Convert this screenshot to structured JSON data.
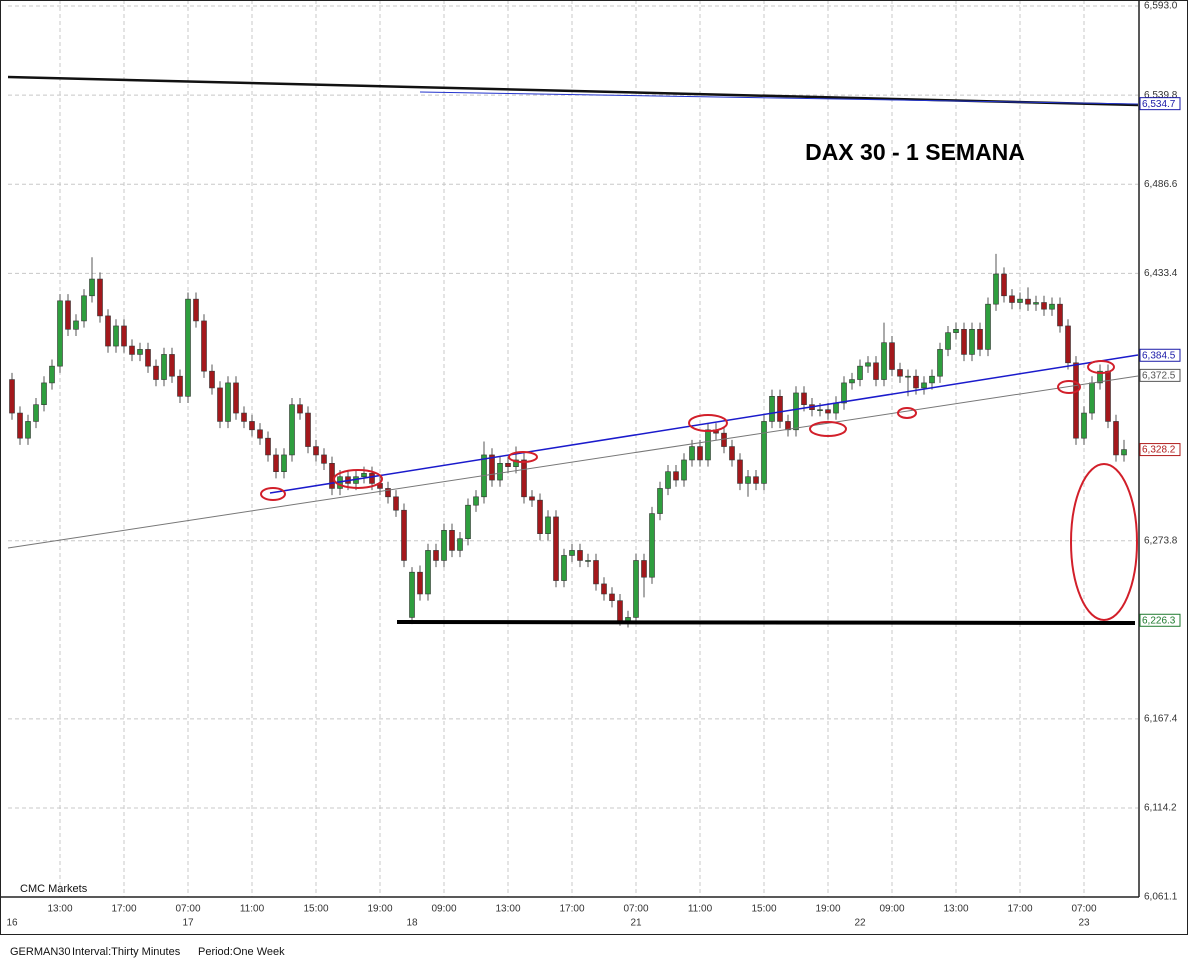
{
  "chart_data": {
    "type": "candlestick",
    "title": "DAX 30 - 1 SEMANA",
    "source": "CMC Markets",
    "symbol": "GERMAN30",
    "interval": "Interval:Thirty Minutes",
    "period": "Period:One Week",
    "up_color": "#2e9e3e",
    "down_color": "#a3181c",
    "grid": true,
    "ylim": [
      6061.1,
      6593.0
    ],
    "yticks": [
      {
        "value": 6061.1,
        "label": "6,061.1"
      },
      {
        "value": 6114.2,
        "label": "6,114.2"
      },
      {
        "value": 6167.4,
        "label": "6,167.4"
      },
      {
        "value": 6273.8,
        "label": "6,273.8"
      },
      {
        "value": 6433.4,
        "label": "6,433.4"
      },
      {
        "value": 6486.6,
        "label": "6,486.6"
      },
      {
        "value": 6539.8,
        "label": "6,539.8"
      },
      {
        "value": 6593.0,
        "label": "6,593.0"
      }
    ],
    "price_labels": [
      {
        "value": 6534.7,
        "label": "6,534.7",
        "color": "#1a1aa8"
      },
      {
        "value": 6384.5,
        "label": "6,384.5",
        "color": "#1a1aa8"
      },
      {
        "value": 6372.5,
        "label": "6,372.5",
        "color": "#555555"
      },
      {
        "value": 6328.2,
        "label": "6,328.2",
        "color": "#b01c1c"
      },
      {
        "value": 6226.3,
        "label": "6,226.3",
        "color": "#1e7a2e"
      }
    ],
    "xlim": [
      -0.5,
      140.75
    ],
    "xticks": [
      {
        "value": 6,
        "label": "13:00"
      },
      {
        "value": 14,
        "label": "17:00"
      },
      {
        "value": 22,
        "label": "07:00"
      },
      {
        "value": 30,
        "label": "11:00"
      },
      {
        "value": 38,
        "label": "15:00"
      },
      {
        "value": 46,
        "label": "19:00"
      },
      {
        "value": 54,
        "label": "09:00"
      },
      {
        "value": 62,
        "label": "13:00"
      },
      {
        "value": 70,
        "label": "17:00"
      },
      {
        "value": 78,
        "label": "07:00"
      },
      {
        "value": 86,
        "label": "11:00"
      },
      {
        "value": 94,
        "label": "15:00"
      },
      {
        "value": 102,
        "label": "19:00"
      },
      {
        "value": 110,
        "label": "09:00"
      },
      {
        "value": 118,
        "label": "13:00"
      },
      {
        "value": 126,
        "label": "17:00"
      },
      {
        "value": 134,
        "label": "07:00"
      }
    ],
    "day_ticks": [
      {
        "value": 0,
        "label": "16"
      },
      {
        "value": 22,
        "label": "17"
      },
      {
        "value": 50,
        "label": "18"
      },
      {
        "value": 78,
        "label": "21"
      },
      {
        "value": 106,
        "label": "22"
      },
      {
        "value": 134,
        "label": "23"
      }
    ],
    "ohlc": [
      [
        6370,
        6374,
        6346,
        6350
      ],
      [
        6350,
        6354,
        6331,
        6335
      ],
      [
        6335,
        6349,
        6331,
        6345
      ],
      [
        6345,
        6359,
        6341,
        6355
      ],
      [
        6355,
        6372,
        6351,
        6368
      ],
      [
        6368,
        6382,
        6364,
        6378
      ],
      [
        6378,
        6421,
        6374,
        6417
      ],
      [
        6417,
        6421,
        6396,
        6400
      ],
      [
        6400,
        6409,
        6396,
        6405
      ],
      [
        6405,
        6424,
        6401,
        6420
      ],
      [
        6420,
        6443,
        6416,
        6430
      ],
      [
        6430,
        6434,
        6404,
        6408
      ],
      [
        6408,
        6412,
        6386,
        6390
      ],
      [
        6390,
        6406,
        6386,
        6402
      ],
      [
        6402,
        6406,
        6386,
        6390
      ],
      [
        6390,
        6394,
        6381,
        6385
      ],
      [
        6385,
        6392,
        6381,
        6388
      ],
      [
        6388,
        6392,
        6374,
        6378
      ],
      [
        6378,
        6382,
        6366,
        6370
      ],
      [
        6370,
        6389,
        6366,
        6385
      ],
      [
        6385,
        6389,
        6368,
        6372
      ],
      [
        6372,
        6376,
        6356,
        6360
      ],
      [
        6360,
        6422,
        6356,
        6418
      ],
      [
        6418,
        6422,
        6401,
        6405
      ],
      [
        6405,
        6409,
        6371,
        6375
      ],
      [
        6375,
        6379,
        6361,
        6365
      ],
      [
        6365,
        6369,
        6341,
        6345
      ],
      [
        6345,
        6372,
        6341,
        6368
      ],
      [
        6368,
        6372,
        6346,
        6350
      ],
      [
        6350,
        6354,
        6341,
        6345
      ],
      [
        6345,
        6349,
        6336,
        6340
      ],
      [
        6340,
        6344,
        6331,
        6335
      ],
      [
        6335,
        6339,
        6321,
        6325
      ],
      [
        6325,
        6329,
        6311,
        6315
      ],
      [
        6315,
        6329,
        6311,
        6325
      ],
      [
        6325,
        6359,
        6321,
        6355
      ],
      [
        6355,
        6359,
        6346,
        6350
      ],
      [
        6350,
        6354,
        6326,
        6330
      ],
      [
        6330,
        6334,
        6321,
        6325
      ],
      [
        6325,
        6329,
        6316,
        6320
      ],
      [
        6320,
        6324,
        6301,
        6305
      ],
      [
        6305,
        6316,
        6301,
        6312
      ],
      [
        6312,
        6316,
        6304,
        6308
      ],
      [
        6308,
        6316,
        6304,
        6312
      ],
      [
        6312,
        6318,
        6308,
        6314
      ],
      [
        6314,
        6318,
        6304,
        6308
      ],
      [
        6308,
        6312,
        6301,
        6305
      ],
      [
        6305,
        6309,
        6296,
        6300
      ],
      [
        6300,
        6304,
        6288,
        6292
      ],
      [
        6292,
        6296,
        6258,
        6262
      ],
      [
        6228,
        6258,
        6224,
        6255
      ],
      [
        6255,
        6259,
        6238,
        6242
      ],
      [
        6242,
        6272,
        6238,
        6268
      ],
      [
        6268,
        6272,
        6258,
        6262
      ],
      [
        6262,
        6284,
        6258,
        6280
      ],
      [
        6280,
        6284,
        6264,
        6268
      ],
      [
        6268,
        6279,
        6264,
        6275
      ],
      [
        6275,
        6299,
        6271,
        6295
      ],
      [
        6295,
        6304,
        6291,
        6300
      ],
      [
        6300,
        6333,
        6296,
        6325
      ],
      [
        6325,
        6329,
        6306,
        6310
      ],
      [
        6310,
        6324,
        6306,
        6320
      ],
      [
        6320,
        6324,
        6314,
        6318
      ],
      [
        6318,
        6330,
        6314,
        6322
      ],
      [
        6322,
        6326,
        6296,
        6300
      ],
      [
        6300,
        6304,
        6294,
        6298
      ],
      [
        6298,
        6302,
        6274,
        6278
      ],
      [
        6278,
        6292,
        6274,
        6288
      ],
      [
        6288,
        6292,
        6246,
        6250
      ],
      [
        6250,
        6269,
        6246,
        6265
      ],
      [
        6265,
        6272,
        6261,
        6268
      ],
      [
        6268,
        6272,
        6258,
        6262
      ],
      [
        6262,
        6266,
        6258,
        6262
      ],
      [
        6262,
        6266,
        6244,
        6248
      ],
      [
        6248,
        6252,
        6238,
        6242
      ],
      [
        6242,
        6246,
        6234,
        6238
      ],
      [
        6238,
        6242,
        6223,
        6226
      ],
      [
        6226,
        6232,
        6222,
        6228
      ],
      [
        6228,
        6266,
        6224,
        6262
      ],
      [
        6262,
        6266,
        6240,
        6252
      ],
      [
        6252,
        6294,
        6248,
        6290
      ],
      [
        6290,
        6309,
        6286,
        6305
      ],
      [
        6305,
        6319,
        6301,
        6315
      ],
      [
        6315,
        6319,
        6306,
        6310
      ],
      [
        6310,
        6326,
        6306,
        6322
      ],
      [
        6322,
        6334,
        6318,
        6330
      ],
      [
        6330,
        6334,
        6318,
        6322
      ],
      [
        6322,
        6344,
        6318,
        6340
      ],
      [
        6340,
        6344,
        6334,
        6338
      ],
      [
        6338,
        6342,
        6326,
        6330
      ],
      [
        6330,
        6334,
        6318,
        6322
      ],
      [
        6322,
        6326,
        6304,
        6308
      ],
      [
        6308,
        6316,
        6300,
        6312
      ],
      [
        6312,
        6316,
        6304,
        6308
      ],
      [
        6308,
        6349,
        6304,
        6345
      ],
      [
        6345,
        6364,
        6341,
        6360
      ],
      [
        6360,
        6364,
        6341,
        6345
      ],
      [
        6345,
        6349,
        6336,
        6340
      ],
      [
        6340,
        6366,
        6336,
        6362
      ],
      [
        6362,
        6366,
        6351,
        6355
      ],
      [
        6355,
        6359,
        6348,
        6352
      ],
      [
        6352,
        6356,
        6348,
        6352
      ],
      [
        6352,
        6356,
        6346,
        6350
      ],
      [
        6350,
        6360,
        6346,
        6356
      ],
      [
        6356,
        6372,
        6352,
        6368
      ],
      [
        6368,
        6374,
        6364,
        6370
      ],
      [
        6370,
        6382,
        6366,
        6378
      ],
      [
        6378,
        6384,
        6374,
        6380
      ],
      [
        6380,
        6384,
        6366,
        6370
      ],
      [
        6370,
        6404,
        6366,
        6392
      ],
      [
        6392,
        6396,
        6372,
        6376
      ],
      [
        6376,
        6380,
        6368,
        6372
      ],
      [
        6372,
        6376,
        6360,
        6372
      ],
      [
        6372,
        6376,
        6361,
        6365
      ],
      [
        6365,
        6372,
        6361,
        6368
      ],
      [
        6368,
        6376,
        6364,
        6372
      ],
      [
        6372,
        6392,
        6368,
        6388
      ],
      [
        6388,
        6402,
        6384,
        6398
      ],
      [
        6398,
        6404,
        6394,
        6400
      ],
      [
        6400,
        6404,
        6381,
        6385
      ],
      [
        6385,
        6404,
        6381,
        6400
      ],
      [
        6400,
        6404,
        6384,
        6388
      ],
      [
        6388,
        6419,
        6384,
        6415
      ],
      [
        6415,
        6445,
        6411,
        6433
      ],
      [
        6433,
        6437,
        6416,
        6420
      ],
      [
        6420,
        6424,
        6412,
        6416
      ],
      [
        6416,
        6422,
        6412,
        6418
      ],
      [
        6418,
        6425,
        6411,
        6415
      ],
      [
        6415,
        6420,
        6411,
        6416
      ],
      [
        6416,
        6420,
        6408,
        6412
      ],
      [
        6412,
        6419,
        6408,
        6415
      ],
      [
        6415,
        6419,
        6398,
        6402
      ],
      [
        6402,
        6406,
        6376,
        6380
      ],
      [
        6380,
        6384,
        6331,
        6335
      ],
      [
        6335,
        6354,
        6331,
        6350
      ],
      [
        6350,
        6372,
        6346,
        6368
      ],
      [
        6368,
        6379,
        6364,
        6375
      ],
      [
        6375,
        6379,
        6341,
        6345
      ],
      [
        6345,
        6349,
        6321,
        6325
      ],
      [
        6325,
        6334,
        6321,
        6328.2
      ]
    ]
  }
}
